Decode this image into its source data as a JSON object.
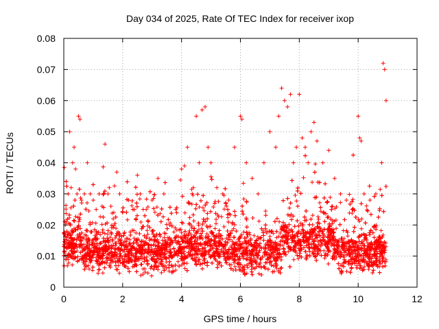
{
  "chart_data": {
    "type": "scatter",
    "title": "Day 034 of 2025, Rate Of TEC Index for receiver ixop",
    "xlabel": "GPS time / hours",
    "ylabel": "ROTI / TECUs",
    "xlim": [
      0,
      12
    ],
    "ylim": [
      0,
      0.08
    ],
    "xticks": [
      "0",
      "2",
      "4",
      "6",
      "8",
      "10",
      "12"
    ],
    "yticks": [
      "0",
      "0.01",
      "0.02",
      "0.03",
      "0.04",
      "0.05",
      "0.06",
      "0.07",
      "0.08"
    ],
    "grid": true,
    "marker": "+",
    "series_color": "#ff0000",
    "data_extent_hours": [
      0,
      10.95
    ],
    "series": [
      {
        "name": "ROTI",
        "x": [
          0.05,
          0.1,
          0.15,
          0.2,
          0.25,
          0.3,
          0.35,
          0.4,
          0.45,
          0.5,
          0.55,
          0.6,
          0.7,
          0.8,
          0.9,
          1.0,
          1.1,
          1.2,
          1.3,
          1.4,
          1.5,
          1.6,
          1.7,
          1.8,
          1.9,
          2.0,
          2.2,
          2.4,
          2.5,
          2.6,
          2.8,
          3.0,
          3.2,
          3.4,
          3.6,
          3.8,
          4.0,
          4.1,
          4.2,
          4.4,
          4.5,
          4.6,
          4.7,
          4.8,
          4.9,
          5.0,
          5.2,
          5.4,
          5.6,
          5.8,
          6.0,
          6.05,
          6.2,
          6.4,
          6.6,
          6.8,
          7.0,
          7.2,
          7.3,
          7.4,
          7.5,
          7.6,
          7.7,
          7.8,
          7.9,
          8.0,
          8.1,
          8.2,
          8.3,
          8.4,
          8.5,
          8.6,
          8.8,
          9.0,
          9.2,
          9.4,
          9.6,
          9.8,
          10.0,
          10.05,
          10.1,
          10.2,
          10.4,
          10.6,
          10.8,
          10.85,
          10.9,
          10.95
        ],
        "y": [
          0.02,
          0.018,
          0.03,
          0.05,
          0.032,
          0.04,
          0.045,
          0.038,
          0.03,
          0.055,
          0.054,
          0.028,
          0.03,
          0.04,
          0.03,
          0.028,
          0.025,
          0.03,
          0.026,
          0.046,
          0.03,
          0.026,
          0.024,
          0.037,
          0.03,
          0.024,
          0.028,
          0.025,
          0.036,
          0.03,
          0.025,
          0.028,
          0.035,
          0.03,
          0.02,
          0.025,
          0.038,
          0.039,
          0.045,
          0.032,
          0.055,
          0.04,
          0.057,
          0.058,
          0.045,
          0.04,
          0.032,
          0.03,
          0.028,
          0.045,
          0.055,
          0.054,
          0.04,
          0.035,
          0.03,
          0.04,
          0.05,
          0.045,
          0.055,
          0.064,
          0.06,
          0.058,
          0.062,
          0.04,
          0.045,
          0.062,
          0.048,
          0.045,
          0.04,
          0.05,
          0.053,
          0.047,
          0.04,
          0.044,
          0.035,
          0.03,
          0.028,
          0.025,
          0.055,
          0.048,
          0.047,
          0.03,
          0.028,
          0.03,
          0.04,
          0.072,
          0.07,
          0.06
        ]
      }
    ]
  }
}
